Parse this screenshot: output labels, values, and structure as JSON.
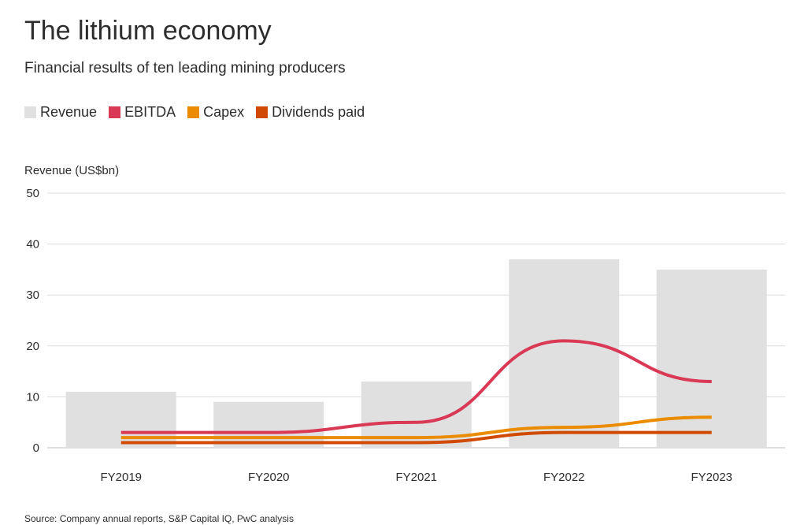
{
  "title": "The lithium economy",
  "subtitle": "Financial results of ten leading mining producers",
  "legend": [
    {
      "label": "Revenue",
      "color": "#e0e0e0"
    },
    {
      "label": "EBITDA",
      "color": "#d93954"
    },
    {
      "label": "Capex",
      "color": "#eb8c00"
    },
    {
      "label": "Dividends paid",
      "color": "#d04a02"
    }
  ],
  "source": "Source: Company annual reports, S&P Capital IQ, PwC analysis",
  "chart_data": {
    "type": "bar",
    "title": "The lithium economy",
    "ylabel": "Revenue (US$bn)",
    "xlabel": "",
    "ylim": [
      0,
      50
    ],
    "yticks": [
      0,
      10,
      20,
      30,
      40,
      50
    ],
    "categories": [
      "FY2019",
      "FY2020",
      "FY2021",
      "FY2022",
      "FY2023"
    ],
    "grid": true,
    "series": [
      {
        "name": "Revenue",
        "kind": "bar",
        "color": "#e0e0e0",
        "values": [
          11,
          9,
          13,
          37,
          35
        ]
      },
      {
        "name": "EBITDA",
        "kind": "line",
        "color": "#d93954",
        "values": [
          3,
          3,
          5,
          21,
          13
        ]
      },
      {
        "name": "Capex",
        "kind": "line",
        "color": "#eb8c00",
        "values": [
          2,
          2,
          2,
          4,
          6
        ]
      },
      {
        "name": "Dividends paid",
        "kind": "line",
        "color": "#d04a02",
        "values": [
          1,
          1,
          1,
          3,
          3
        ]
      }
    ]
  }
}
